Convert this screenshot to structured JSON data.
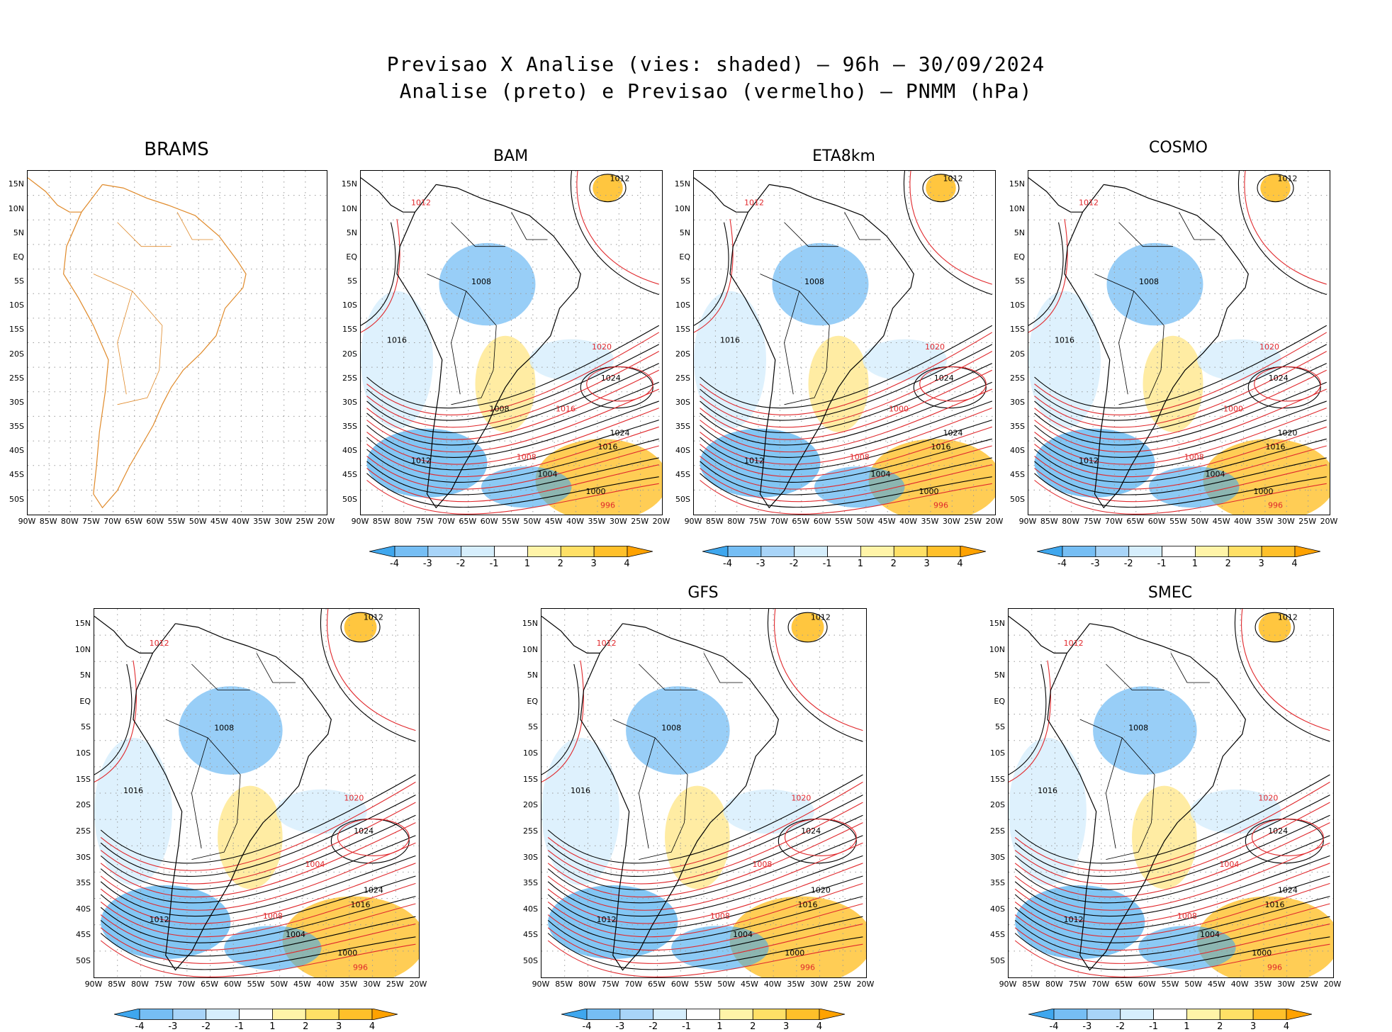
{
  "title": {
    "line1": "Previsao X Analise (vies: shaded) – 96h – 30/09/2024",
    "line2": "Analise (preto) e Previsao (vermelho) – PNMM (hPa)"
  },
  "latitude_labels": [
    "15N",
    "10N",
    "5N",
    "EQ",
    "5S",
    "10S",
    "15S",
    "20S",
    "25S",
    "30S",
    "35S",
    "40S",
    "45S",
    "50S"
  ],
  "longitude_labels": [
    "90W",
    "85W",
    "80W",
    "75W",
    "70W",
    "65W",
    "60W",
    "55W",
    "50W",
    "45W",
    "40W",
    "35W",
    "30W",
    "25W",
    "20W"
  ],
  "colorbar": {
    "labels": [
      "-4",
      "-3",
      "-2",
      "-1",
      "1",
      "2",
      "3",
      "4"
    ],
    "colors": [
      "#3fa7ee",
      "#76bef4",
      "#a8d4f8",
      "#d6eefc",
      "#ffffff",
      "#fff4a8",
      "#ffe066",
      "#ffc02a",
      "#ffa200"
    ]
  },
  "colors": {
    "analysis_contour": "#000000",
    "forecast_contour": "#e0282c",
    "coastline_brams": "#e08a2a"
  },
  "panels": [
    {
      "id": "brams",
      "title": "BRAMS",
      "has_colorbar": false,
      "labels": []
    },
    {
      "id": "bam",
      "title": "BAM",
      "has_colorbar": true,
      "labels": [
        "1012",
        "1012",
        "1008",
        "1016",
        "1020",
        "1024",
        "1016",
        "1008",
        "1004",
        "1000",
        "996",
        "1012",
        "1024",
        "1016",
        "1008"
      ]
    },
    {
      "id": "eta",
      "title": "ETA8km",
      "has_colorbar": true,
      "labels": [
        "1012",
        "1012",
        "1008",
        "1016",
        "1020",
        "1024",
        "1016",
        "1008",
        "1004",
        "1000",
        "996",
        "1012",
        "1024",
        "1000"
      ]
    },
    {
      "id": "cosmo",
      "title": "COSMO",
      "has_colorbar": true,
      "labels": [
        "1012",
        "1012",
        "1008",
        "1016",
        "1020",
        "1024",
        "1016",
        "1008",
        "1004",
        "1000",
        "996",
        "1012",
        "1020",
        "1000"
      ]
    },
    {
      "id": "p5",
      "title": "",
      "has_colorbar": true,
      "labels": [
        "1012",
        "1012",
        "1008",
        "1016",
        "1020",
        "1024",
        "1016",
        "1008",
        "1004",
        "1000",
        "996",
        "1012",
        "1024",
        "1004"
      ]
    },
    {
      "id": "gfs",
      "title": "GFS",
      "has_colorbar": true,
      "labels": [
        "1012",
        "1012",
        "1008",
        "1016",
        "1020",
        "1024",
        "1016",
        "1008",
        "1004",
        "1000",
        "996",
        "1012",
        "1020",
        "1008"
      ]
    },
    {
      "id": "smec",
      "title": "SMEC",
      "has_colorbar": true,
      "labels": [
        "1012",
        "1012",
        "1008",
        "1016",
        "1020",
        "1024",
        "1016",
        "1008",
        "1004",
        "1000",
        "996",
        "1012",
        "1024",
        "1004"
      ]
    }
  ]
}
